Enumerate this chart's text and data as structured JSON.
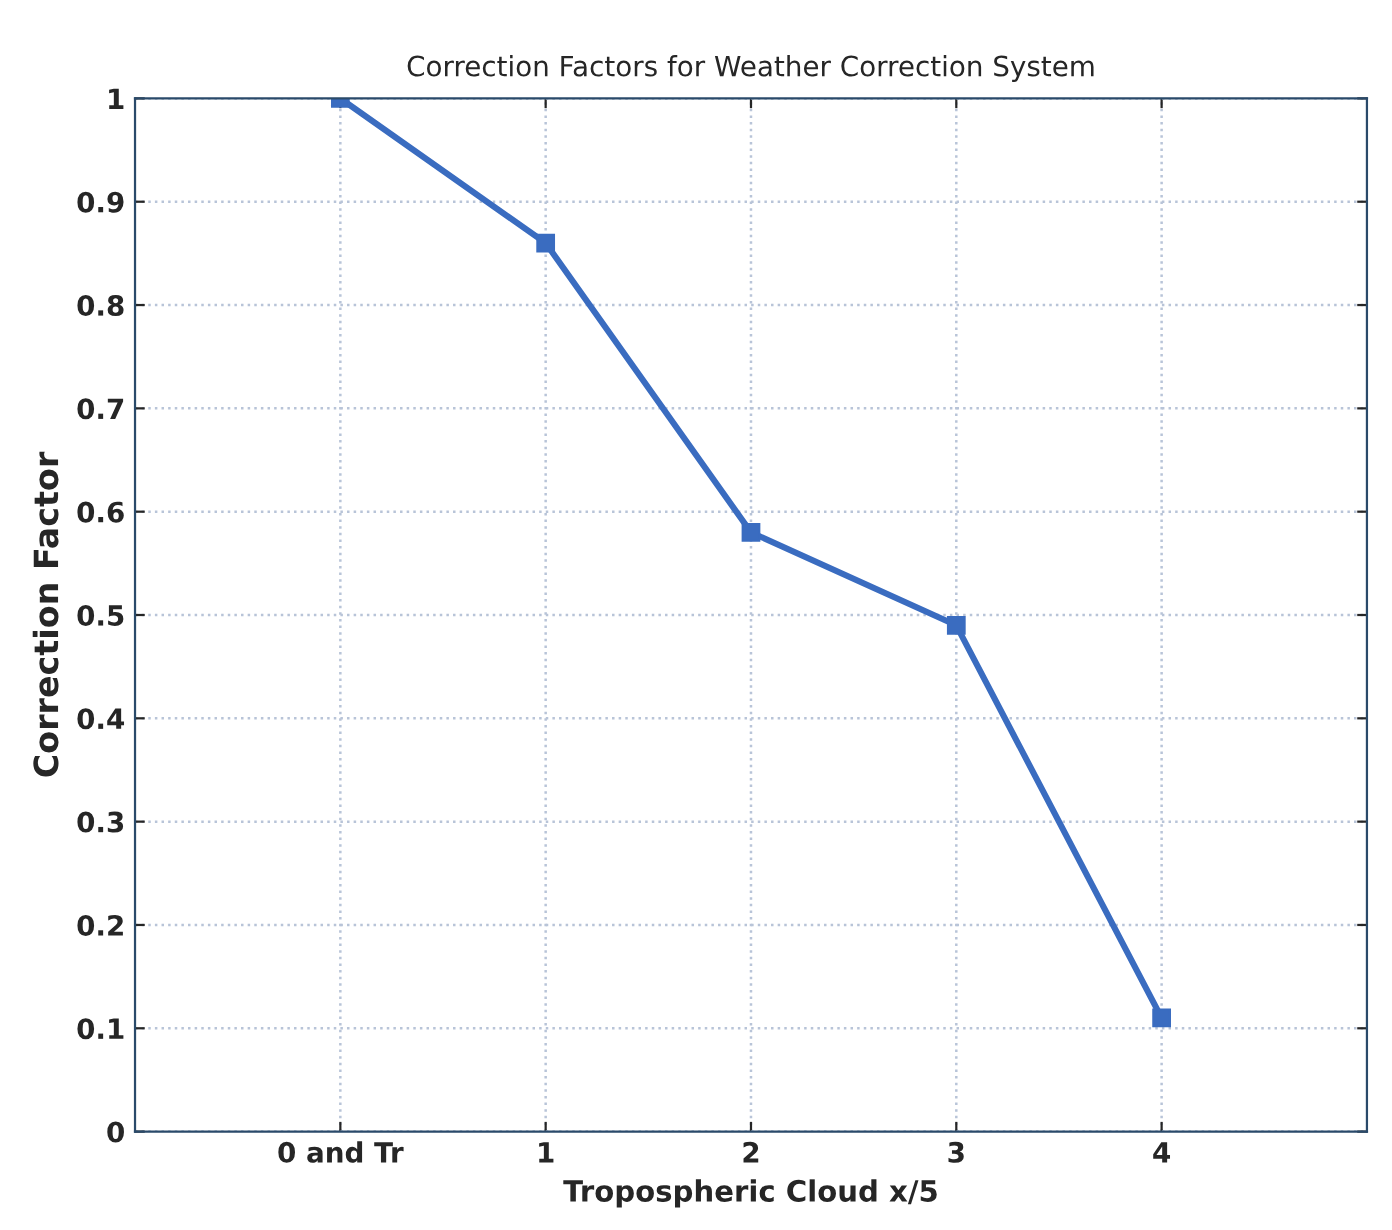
{
  "chart_data": {
    "type": "line",
    "title": "Correction Factors for Weather Correction System",
    "xlabel": "Tropospheric Cloud x/5",
    "ylabel": "Correction Factor",
    "categories": [
      "0 and Tr",
      "1",
      "2",
      "3",
      "4"
    ],
    "series": [
      {
        "color": "#3a6cc0",
        "values": [
          1.0,
          0.86,
          0.58,
          0.49,
          0.11
        ]
      }
    ],
    "ylim": [
      0,
      1
    ],
    "yticks": [
      0,
      0.1,
      0.2,
      0.3,
      0.4,
      0.5,
      0.6,
      0.7,
      0.8,
      0.9,
      1
    ],
    "grid": true,
    "marker": "square",
    "line_style": "solid"
  }
}
